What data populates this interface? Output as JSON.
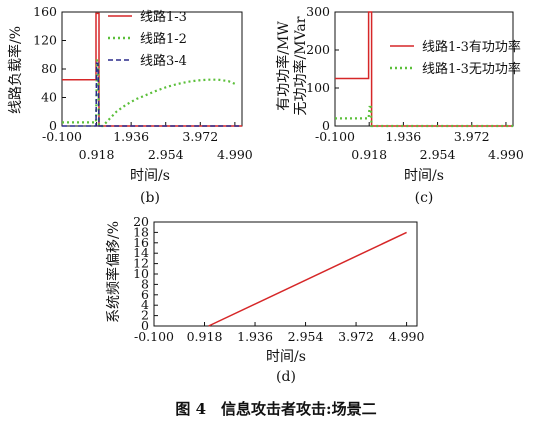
{
  "caption": "图 4　信息攻击者攻击:场景二",
  "chart_data": [
    {
      "id": "b",
      "type": "line",
      "sublabel": "(b)",
      "xlabel": "时间/s",
      "ylabel": "线路负载率/%",
      "xlim": [
        -0.1,
        5.2
      ],
      "ylim": [
        0,
        160
      ],
      "xticks_top": [
        "-0.100",
        "1.936",
        "3.972"
      ],
      "xticks_bottom": [
        "0.918",
        "2.954",
        "4.990"
      ],
      "yticks": [
        "0",
        "40",
        "80",
        "120",
        "160"
      ],
      "legend_position": "top-right",
      "series": [
        {
          "name": "线路1-3",
          "color": "#d62728",
          "dash": "solid",
          "points": [
            [
              -0.1,
              65
            ],
            [
              0.9,
              65
            ],
            [
              0.9,
              158
            ],
            [
              0.99,
              158
            ],
            [
              0.99,
              0
            ],
            [
              5.2,
              0
            ]
          ]
        },
        {
          "name": "线路1-2",
          "color": "#5bbf3a",
          "dash": "dotted",
          "points": [
            [
              -0.1,
              5
            ],
            [
              0.9,
              5
            ],
            [
              0.93,
              92
            ],
            [
              0.97,
              92
            ],
            [
              0.99,
              0
            ],
            [
              1.1,
              0
            ],
            [
              1.3,
              10
            ],
            [
              1.5,
              20
            ],
            [
              1.7,
              27
            ],
            [
              1.9,
              33
            ],
            [
              2.1,
              38
            ],
            [
              2.4,
              44
            ],
            [
              2.7,
              50
            ],
            [
              3.0,
              55
            ],
            [
              3.3,
              59
            ],
            [
              3.6,
              62
            ],
            [
              3.9,
              64
            ],
            [
              4.2,
              65
            ],
            [
              4.5,
              65
            ],
            [
              4.8,
              63
            ],
            [
              5.05,
              58
            ]
          ]
        },
        {
          "name": "线路3-4",
          "color": "#2b2b8c",
          "dash": "dashed",
          "points": [
            [
              -0.1,
              0
            ],
            [
              0.9,
              0
            ],
            [
              0.92,
              88
            ],
            [
              0.96,
              88
            ],
            [
              0.99,
              0
            ],
            [
              5.2,
              0
            ]
          ]
        }
      ]
    },
    {
      "id": "c",
      "type": "line",
      "sublabel": "(c)",
      "xlabel": "时间/s",
      "ylabel": "有功功率/MW\n无功功率/MVar",
      "xlim": [
        -0.1,
        5.2
      ],
      "ylim": [
        0,
        300
      ],
      "xticks_top": [
        "-0.100",
        "1.936",
        "3.972"
      ],
      "xticks_bottom": [
        "0.918",
        "2.954",
        "4.990"
      ],
      "yticks": [
        "0",
        "100",
        "200",
        "300"
      ],
      "legend_position": "top-right",
      "series": [
        {
          "name": "线路1-3有功功率",
          "color": "#d62728",
          "dash": "solid",
          "points": [
            [
              -0.1,
              125
            ],
            [
              0.9,
              125
            ],
            [
              0.9,
              300
            ],
            [
              0.99,
              300
            ],
            [
              0.99,
              0
            ],
            [
              5.2,
              0
            ]
          ]
        },
        {
          "name": "线路1-3无功功率",
          "color": "#5bbf3a",
          "dash": "dotted",
          "points": [
            [
              -0.1,
              20
            ],
            [
              0.9,
              20
            ],
            [
              0.93,
              50
            ],
            [
              0.97,
              50
            ],
            [
              0.99,
              0
            ],
            [
              5.2,
              0
            ]
          ]
        }
      ]
    },
    {
      "id": "d",
      "type": "line",
      "sublabel": "(d)",
      "xlabel": "时间/s",
      "ylabel": "系统频率偏移/%",
      "xlim": [
        -0.1,
        5.2
      ],
      "ylim": [
        0,
        20
      ],
      "xticks": [
        "-0.100",
        "0.918",
        "1.936",
        "2.954",
        "3.972",
        "4.990"
      ],
      "yticks": [
        "0",
        "2",
        "4",
        "6",
        "8",
        "10",
        "12",
        "14",
        "16",
        "18",
        "20"
      ],
      "series": [
        {
          "name": "",
          "color": "#d62728",
          "dash": "solid",
          "points": [
            [
              1.0,
              0
            ],
            [
              4.99,
              18
            ]
          ]
        }
      ]
    }
  ]
}
